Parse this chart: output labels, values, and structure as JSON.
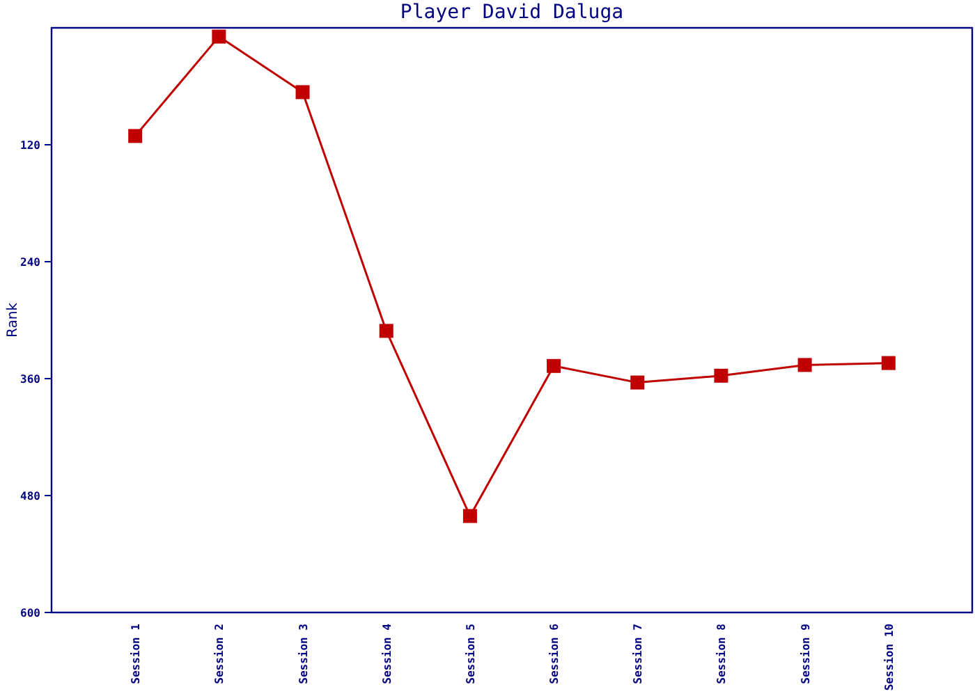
{
  "chart_data": {
    "type": "line",
    "title": "Player David Daluga",
    "ylabel": "Rank",
    "categories": [
      "Session 1",
      "Session 2",
      "Session 3",
      "Session 4",
      "Session 5",
      "Session 6",
      "Session 7",
      "Session 8",
      "Session 9",
      "Session 10"
    ],
    "series": [
      {
        "color": "#c00000",
        "values": [
          111,
          9,
          66,
          311,
          501,
          347,
          364,
          357,
          346,
          344
        ]
      }
    ],
    "ylim": [
      600,
      0
    ],
    "yticks": [
      120,
      240,
      360,
      480,
      600
    ],
    "marker": "square",
    "line_style": "solid",
    "grid": false
  }
}
